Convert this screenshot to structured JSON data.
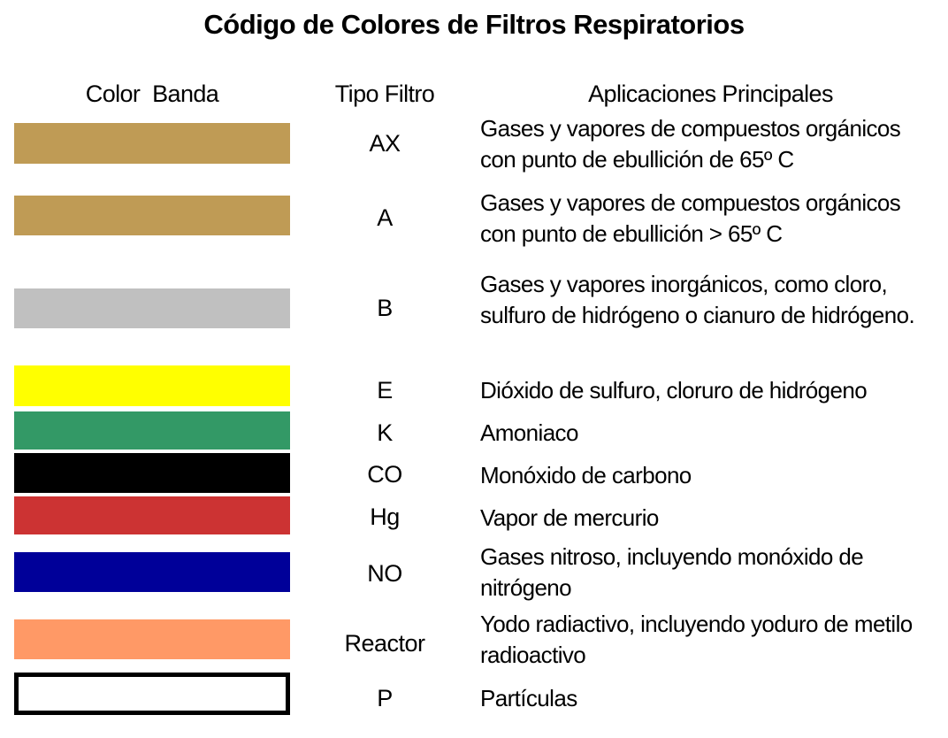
{
  "title": "Código de Colores de Filtros Respiratorios",
  "headers": {
    "color_band": "Color  Banda",
    "filter_type": "Tipo Filtro",
    "applications": "Aplicaciones Principales"
  },
  "text_color": "#000000",
  "rows": [
    {
      "type": "AX",
      "band_color": "#BF9B55",
      "application": "Gases y vapores de compuestos orgánicos con punto de ebullición de 65º C"
    },
    {
      "type": "A",
      "band_color": "#BF9B55",
      "application": "Gases y vapores de compuestos orgánicos con punto de ebullición > 65º C"
    },
    {
      "type": "B",
      "band_color": "#C0C0C0",
      "application": "Gases y vapores inorgánicos, como cloro, sulfuro de hidrógeno o cianuro de hidrógeno."
    },
    {
      "type": "E",
      "band_color": "#FFFF00",
      "application": "Dióxido de sulfuro, cloruro de hidrógeno"
    },
    {
      "type": "K",
      "band_color": "#339966",
      "application": "Amoniaco"
    },
    {
      "type": "CO",
      "band_color": "#000000",
      "application": "Monóxido de carbono"
    },
    {
      "type": "Hg",
      "band_color": "#CC3333",
      "application": "Vapor de mercurio"
    },
    {
      "type": "NO",
      "band_color": "#000099",
      "application": "Gases nitroso, incluyendo monóxido de nitrógeno"
    },
    {
      "type": "Reactor",
      "band_color": "#FF9966",
      "application": "Yodo radiactivo, incluyendo yoduro de metilo radioactivo"
    },
    {
      "type": "P",
      "band_color": "#FFFFFF",
      "band_border_color": "#000000",
      "application": "Partículas"
    }
  ]
}
